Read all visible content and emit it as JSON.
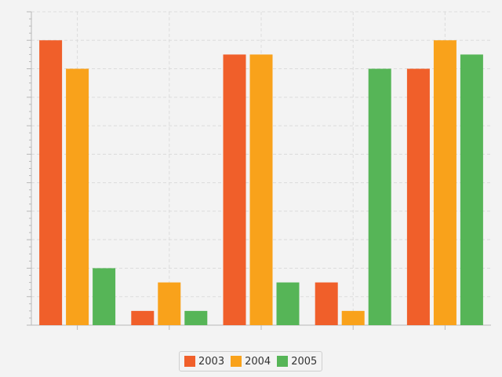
{
  "chart_data": {
    "type": "bar",
    "title": "",
    "xlabel": "",
    "ylabel": "",
    "categories": [
      "",
      "",
      "",
      "",
      ""
    ],
    "series": [
      {
        "name": "2003",
        "color": "#f05f2a",
        "values": [
          20,
          1,
          19,
          3,
          18
        ]
      },
      {
        "name": "2004",
        "color": "#f9a21b",
        "values": [
          18,
          3,
          19,
          1,
          20
        ]
      },
      {
        "name": "2005",
        "color": "#56b557",
        "values": [
          4,
          1,
          3,
          18,
          19
        ]
      }
    ],
    "ylim": [
      0,
      22
    ],
    "grid": true,
    "legend_position": "bottom-center"
  }
}
